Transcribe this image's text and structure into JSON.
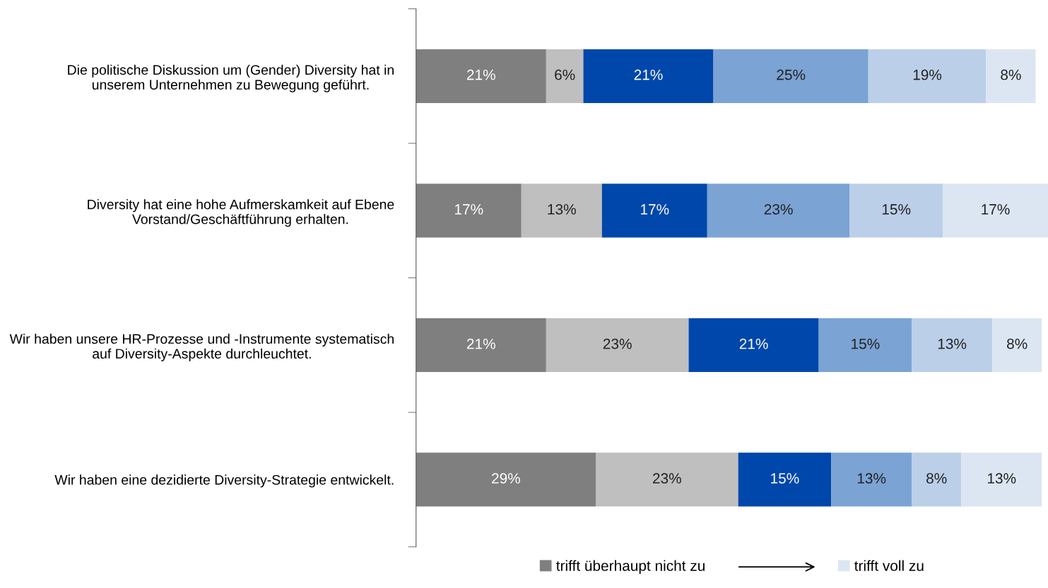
{
  "chart_data": {
    "type": "bar",
    "orientation": "horizontal",
    "stacked": true,
    "legend": "bottom",
    "grid": false,
    "categories": [
      "Die politische Diskussion um (Gender) Diversity hat in\nunserem Unternehmen zu Bewegung geführt.",
      "Diversity hat eine hohe Aufmerskamkeit auf Ebene\nVorstand/Geschäftführung erhalten.",
      "Wir haben unsere HR-Prozesse und -Instrumente systematisch\nauf Diversity-Aspekte durchleuchtet.",
      "Wir haben eine dezidierte Diversity-Strategie entwickelt."
    ],
    "series": [
      {
        "name": "trifft überhaupt nicht zu",
        "color": "#7f7f7f",
        "values": [
          21,
          17,
          21,
          29
        ],
        "value_labels": [
          "21%",
          "17%",
          "21%",
          "29%"
        ]
      },
      {
        "color": "#bfbfbf",
        "values": [
          6,
          13,
          23,
          23
        ],
        "value_labels": [
          "6%",
          "13%",
          "23%",
          "23%"
        ]
      },
      {
        "color": "#0047ab",
        "values": [
          21,
          17,
          21,
          15
        ],
        "value_labels": [
          "21%",
          "17%",
          "21%",
          "15%"
        ]
      },
      {
        "color": "#7ba3d4",
        "values": [
          25,
          23,
          15,
          13
        ],
        "value_labels": [
          "25%",
          "23%",
          "15%",
          "13%"
        ]
      },
      {
        "color": "#bccfe8",
        "values": [
          19,
          15,
          13,
          8
        ],
        "value_labels": [
          "19%",
          "15%",
          "13%",
          "8%"
        ]
      },
      {
        "name": "trifft voll zu",
        "color": "#dce6f2",
        "values": [
          8,
          17,
          8,
          13
        ],
        "value_labels": [
          "8%",
          "17%",
          "8%",
          "13%"
        ]
      }
    ]
  }
}
